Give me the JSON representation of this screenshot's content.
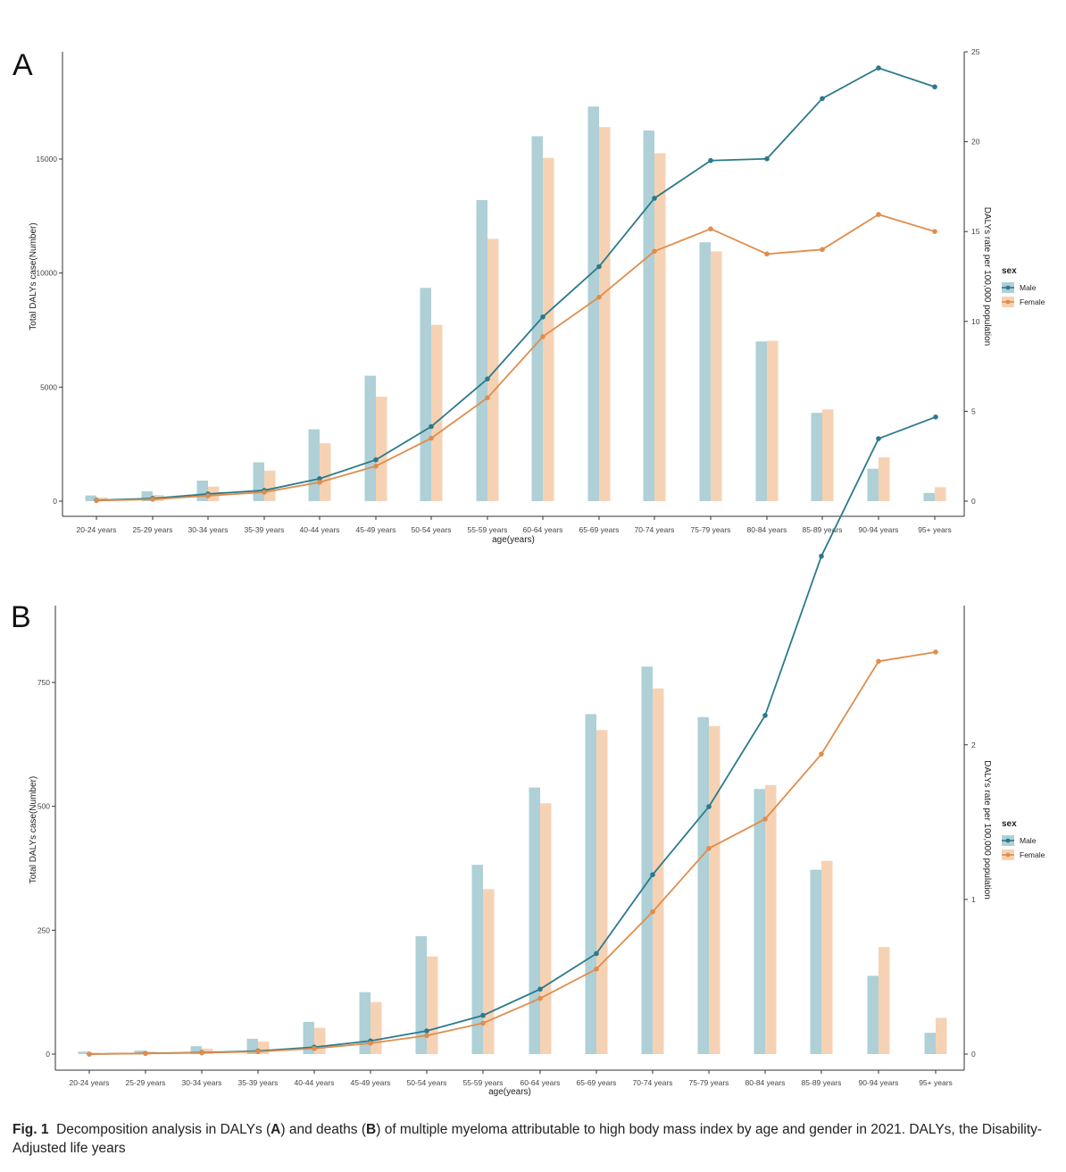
{
  "colors": {
    "male_bar": "#aed0d6",
    "female_bar": "#f6d2b4",
    "male_line": "#2b7a8c",
    "female_line": "#e08d4c"
  },
  "caption": {
    "fig_label": "Fig. 1",
    "part1": "Decomposition analysis in DALYs (",
    "bold_a": "A",
    "part2": ") and deaths (",
    "bold_b": "B",
    "part3": ") of multiple myeloma attributable to high body mass index by age and gender in 2021. DALYs, the Disability-Adjusted life years"
  },
  "chart_data": [
    {
      "panel": "A",
      "type": "bar+line",
      "categories": [
        "20-24 years",
        "25-29 years",
        "30-34 years",
        "35-39 years",
        "40-44 years",
        "45-49 years",
        "50-54 years",
        "55-59 years",
        "60-64 years",
        "65-69 years",
        "70-74 years",
        "75-79 years",
        "80-84 years",
        "85-89 years",
        "90-94 years",
        "95+ years"
      ],
      "xlabel": "age(years)",
      "ylabel": "Total DALYs case(Number)",
      "y2label": "DALYs rate per 100,000 population",
      "ylim": [
        0,
        19700
      ],
      "yticks": [
        0,
        5000,
        10000,
        15000
      ],
      "ytick_labels": [
        "0",
        "5000",
        "10000",
        "15000"
      ],
      "y2lim": [
        0,
        25
      ],
      "y2ticks": [
        0,
        5,
        10,
        15,
        20,
        25
      ],
      "y2tick_labels": [
        "0",
        "5",
        "10",
        "15",
        "20",
        "25"
      ],
      "legend": {
        "title": "sex",
        "position": "right",
        "entries": [
          "Male",
          "Female"
        ]
      },
      "bars": [
        {
          "name": "Male",
          "values": [
            250,
            430,
            900,
            1700,
            3150,
            5500,
            9350,
            13200,
            16000,
            17300,
            16250,
            11350,
            7000,
            3870,
            1420,
            360
          ]
        },
        {
          "name": "Female",
          "values": [
            160,
            270,
            640,
            1340,
            2540,
            4580,
            7730,
            11500,
            15050,
            16400,
            15250,
            10950,
            7030,
            4020,
            1920,
            610
          ]
        }
      ],
      "lines": [
        {
          "name": "Male",
          "values": [
            0.05,
            0.15,
            0.4,
            0.6,
            1.25,
            2.3,
            4.15,
            6.8,
            10.25,
            13.05,
            16.85,
            18.95,
            19.05,
            22.4,
            24.1,
            23.05
          ]
        },
        {
          "name": "Female",
          "values": [
            0.03,
            0.1,
            0.3,
            0.5,
            1.05,
            1.95,
            3.5,
            5.75,
            9.15,
            11.35,
            13.9,
            15.15,
            13.75,
            14.0,
            15.95,
            15.0
          ]
        }
      ]
    },
    {
      "panel": "B",
      "type": "bar+line",
      "categories": [
        "20-24 years",
        "25-29 years",
        "30-34 years",
        "35-39 years",
        "40-44 years",
        "45-49 years",
        "50-54 years",
        "55-59 years",
        "60-64 years",
        "65-69 years",
        "70-74 years",
        "75-79 years",
        "80-84 years",
        "85-89 years",
        "90-94 years",
        "95+ years"
      ],
      "xlabel": "age(years)",
      "ylabel": "Total DALYs case(Number)",
      "y2label": "DALYs rate per 100,000 population",
      "ylim": [
        0,
        905
      ],
      "yticks": [
        0,
        250,
        500,
        750
      ],
      "ytick_labels": [
        "0",
        "250",
        "500",
        "750"
      ],
      "y2lim": [
        0,
        2.9
      ],
      "y2ticks": [
        0,
        1,
        2
      ],
      "y2tick_labels": [
        "0",
        "1",
        "2"
      ],
      "legend": {
        "title": "sex",
        "position": "right",
        "entries": [
          "Male",
          "Female"
        ]
      },
      "bars": [
        {
          "name": "Male",
          "values": [
            5,
            7,
            16,
            31,
            65,
            125,
            238,
            382,
            538,
            686,
            782,
            680,
            535,
            372,
            158,
            43
          ]
        },
        {
          "name": "Female",
          "values": [
            3,
            5,
            11,
            25,
            53,
            105,
            197,
            333,
            506,
            654,
            738,
            662,
            543,
            390,
            216,
            73
          ]
        }
      ],
      "lines": [
        {
          "name": "Male",
          "values": [
            0.0,
            0.005,
            0.01,
            0.02,
            0.045,
            0.085,
            0.15,
            0.25,
            0.42,
            0.65,
            1.16,
            1.6,
            2.19,
            3.22,
            3.98,
            4.12
          ]
        },
        {
          "name": "Female",
          "values": [
            0.0,
            0.004,
            0.008,
            0.016,
            0.036,
            0.07,
            0.12,
            0.2,
            0.36,
            0.55,
            0.92,
            1.33,
            1.52,
            1.94,
            2.54,
            2.6
          ]
        }
      ]
    }
  ]
}
